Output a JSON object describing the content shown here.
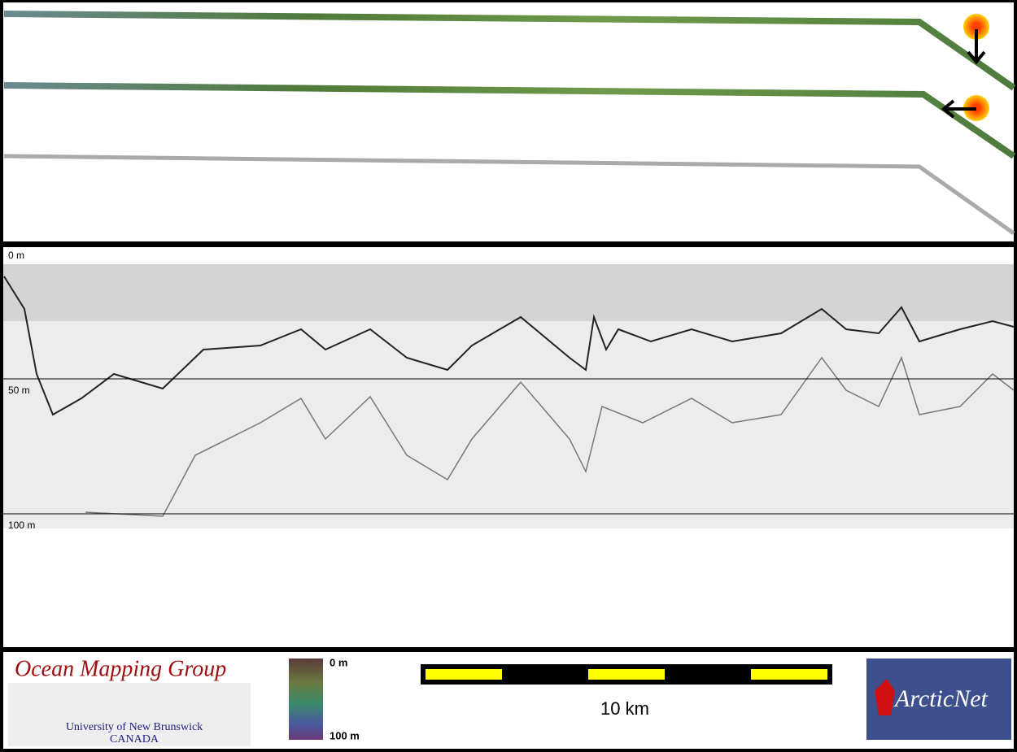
{
  "profile": {
    "depth_labels": [
      "0 m",
      "50 m",
      "100 m"
    ]
  },
  "footer": {
    "logo_title": "Ocean Mapping Group",
    "logo_university": "University of New Brunswick",
    "logo_country": "CANADA",
    "colorbar_top": "0 m",
    "colorbar_bottom": "100 m",
    "scale_label": "10 km",
    "partner_logo": "ArcticNet"
  }
}
